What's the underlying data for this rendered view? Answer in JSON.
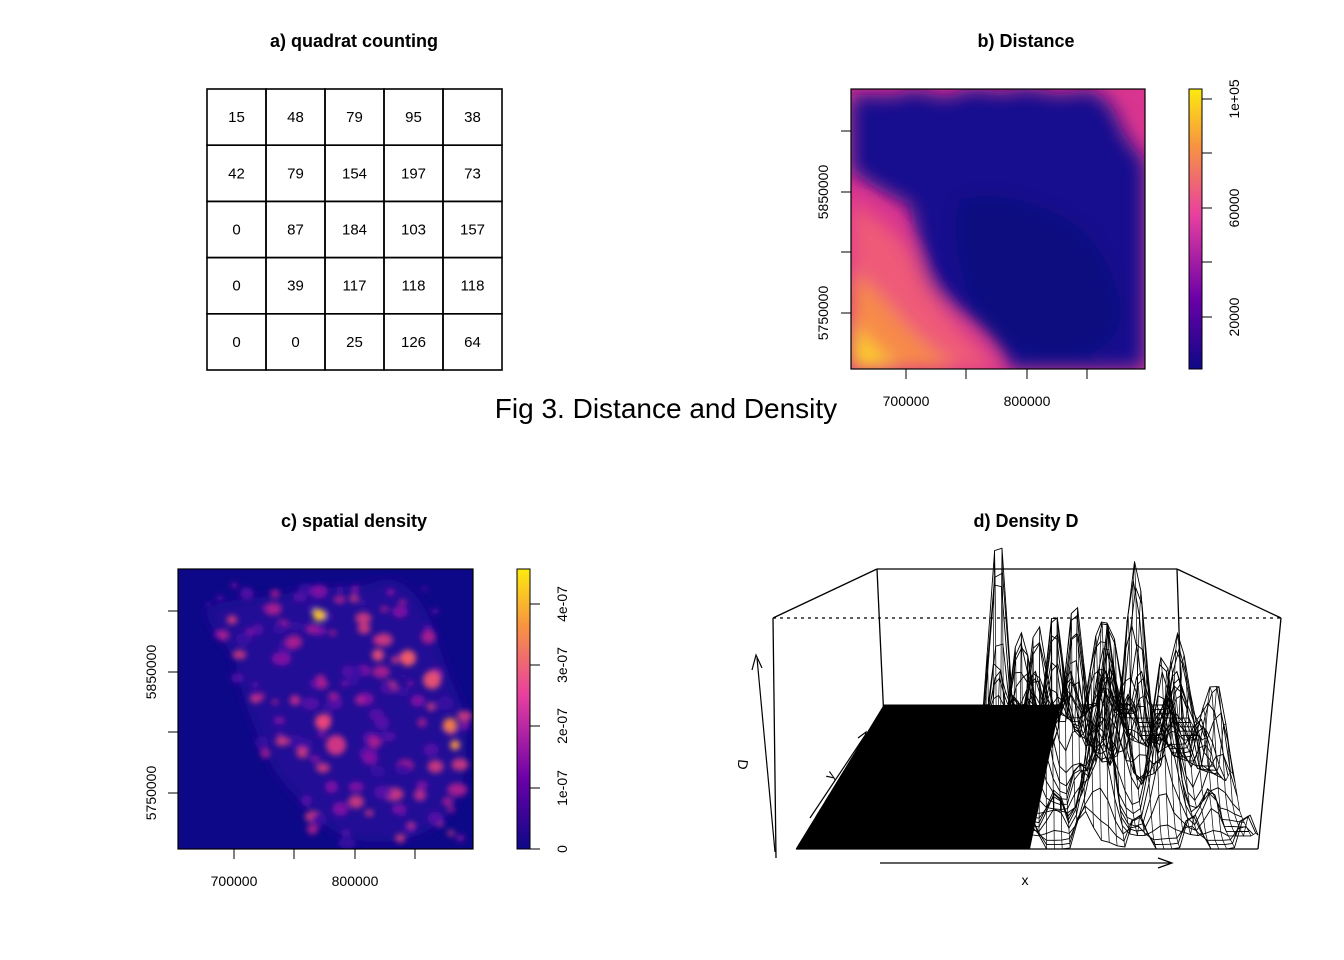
{
  "figure_title": "Fig 3. Distance and Density",
  "chart_data": [
    {
      "panel": "a",
      "type": "table",
      "title": "a) quadrat counting",
      "rows": [
        [
          15,
          48,
          79,
          95,
          38
        ],
        [
          42,
          79,
          154,
          197,
          73
        ],
        [
          0,
          87,
          184,
          103,
          157
        ],
        [
          0,
          39,
          117,
          118,
          118
        ],
        [
          0,
          0,
          25,
          126,
          64
        ]
      ]
    },
    {
      "panel": "b",
      "type": "heatmap",
      "title": "b) Distance",
      "x_ticks": [
        "700000",
        "800000"
      ],
      "y_ticks": [
        "5750000",
        "5850000"
      ],
      "xlim": [
        655000,
        900000
      ],
      "ylim": [
        5700000,
        5935000
      ],
      "colorbar_ticks": [
        "20000",
        "60000",
        "1e+05"
      ],
      "colorbar_range": [
        0,
        107000
      ],
      "colors": [
        "#0d0887",
        "#6a00a8",
        "#e83fa0",
        "#f89540",
        "#fcea10"
      ]
    },
    {
      "panel": "c",
      "type": "heatmap",
      "title": "c) spatial density",
      "x_ticks": [
        "700000",
        "800000"
      ],
      "y_ticks": [
        "5750000",
        "5850000"
      ],
      "xlim": [
        650000,
        895000
      ],
      "ylim": [
        5700000,
        5935000
      ],
      "colorbar_ticks": [
        "0",
        "1e-07",
        "2e-07",
        "3e-07",
        "4e-07"
      ],
      "colorbar_range": [
        0,
        4.6e-07
      ],
      "colors": [
        "#0d0887",
        "#6a00a8",
        "#e83fa0",
        "#f89540",
        "#fcea10"
      ]
    },
    {
      "panel": "d",
      "type": "surface",
      "title": "d) Density D",
      "xlabel": "x",
      "ylabel": "y",
      "zlabel": "D"
    }
  ]
}
